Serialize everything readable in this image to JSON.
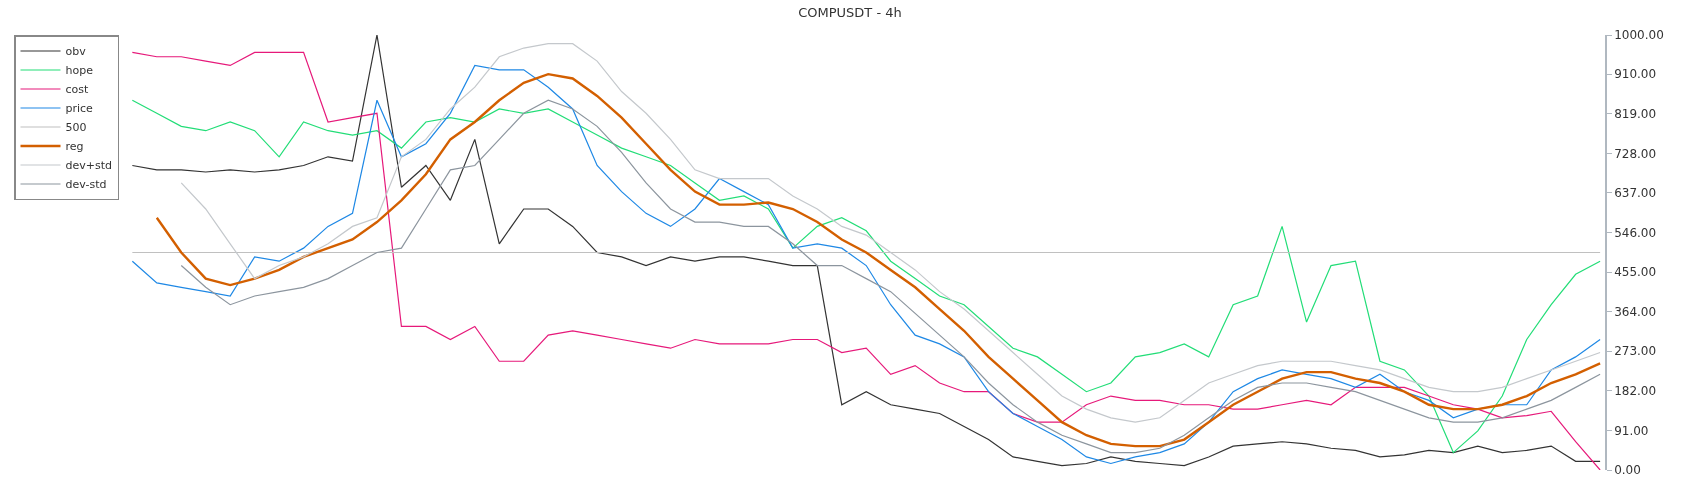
{
  "chart_data": {
    "type": "line",
    "title": "COMPUSDT - 4h",
    "categories": [
      null,
      null,
      null,
      null,
      null,
      null,
      null,
      null,
      null,
      null,
      null,
      null,
      null,
      null,
      null,
      null,
      null,
      null,
      null,
      null,
      null,
      null,
      null,
      null,
      null,
      null,
      null,
      null,
      null,
      null,
      null,
      null,
      null,
      null,
      null,
      null,
      null,
      null,
      null,
      null,
      null,
      null,
      null,
      null,
      null,
      null,
      null,
      null,
      null,
      null,
      null,
      null,
      null,
      null,
      null,
      null,
      null,
      null,
      null,
      null,
      null
    ],
    "series": [
      {
        "name": "obv",
        "color": "#333333",
        "values": [
          700,
          690,
          690,
          685,
          690,
          685,
          690,
          700,
          720,
          710,
          1000,
          650,
          700,
          620,
          760,
          520,
          600,
          600,
          560,
          500,
          490,
          470,
          490,
          480,
          490,
          490,
          480,
          470,
          470,
          150,
          180,
          150,
          140,
          130,
          100,
          70,
          30,
          20,
          10,
          15,
          30,
          20,
          15,
          10,
          30,
          55,
          60,
          65,
          60,
          50,
          45,
          30,
          35,
          45,
          40,
          55,
          40,
          45,
          55,
          20,
          20
        ]
      },
      {
        "name": "hope",
        "color": "#22dd77",
        "values": [
          850,
          820,
          790,
          780,
          800,
          780,
          720,
          800,
          780,
          770,
          780,
          740,
          800,
          810,
          800,
          830,
          820,
          830,
          800,
          770,
          740,
          720,
          700,
          660,
          620,
          630,
          600,
          510,
          560,
          580,
          550,
          480,
          440,
          400,
          380,
          330,
          280,
          260,
          220,
          180,
          200,
          260,
          270,
          290,
          260,
          380,
          400,
          560,
          340,
          470,
          480,
          250,
          230,
          170,
          40,
          90,
          170,
          300,
          380,
          450,
          480
        ]
      },
      {
        "name": "cost",
        "color": "#e6197a",
        "values": [
          960,
          950,
          950,
          940,
          930,
          960,
          960,
          960,
          800,
          810,
          820,
          330,
          330,
          300,
          330,
          250,
          250,
          310,
          320,
          310,
          300,
          290,
          280,
          300,
          290,
          290,
          290,
          300,
          300,
          270,
          280,
          220,
          240,
          200,
          180,
          180,
          130,
          110,
          110,
          150,
          170,
          160,
          160,
          150,
          150,
          140,
          140,
          150,
          160,
          150,
          190,
          190,
          190,
          170,
          150,
          140,
          120,
          125,
          135,
          65,
          0
        ]
      },
      {
        "name": "price",
        "color": "#1e88e5",
        "values": [
          480,
          430,
          420,
          410,
          400,
          490,
          480,
          510,
          560,
          590,
          850,
          720,
          750,
          820,
          930,
          920,
          920,
          880,
          830,
          700,
          640,
          590,
          560,
          600,
          670,
          640,
          610,
          510,
          520,
          510,
          470,
          380,
          310,
          290,
          260,
          180,
          130,
          100,
          70,
          30,
          15,
          30,
          40,
          60,
          110,
          180,
          210,
          230,
          220,
          210,
          190,
          220,
          180,
          160,
          120,
          140,
          150,
          150,
          230,
          260,
          300
        ]
      },
      {
        "name": "500",
        "color": "#c0c0c0",
        "values": [
          500,
          500,
          500,
          500,
          500,
          500,
          500,
          500,
          500,
          500,
          500,
          500,
          500,
          500,
          500,
          500,
          500,
          500,
          500,
          500,
          500,
          500,
          500,
          500,
          500,
          500,
          500,
          500,
          500,
          500,
          500,
          500,
          500,
          500,
          500,
          500,
          500,
          500,
          500,
          500,
          500,
          500,
          500,
          500,
          500,
          500,
          500,
          500,
          500,
          500,
          500,
          500,
          500,
          500,
          500,
          500,
          500,
          500,
          500,
          500,
          500
        ]
      },
      {
        "name": "reg",
        "color": "#d35f00",
        "values": [
          null,
          580,
          500,
          440,
          425,
          440,
          460,
          490,
          510,
          530,
          570,
          620,
          680,
          760,
          800,
          850,
          890,
          910,
          900,
          860,
          810,
          750,
          690,
          640,
          610,
          610,
          615,
          600,
          570,
          530,
          500,
          460,
          420,
          370,
          320,
          260,
          210,
          160,
          110,
          80,
          60,
          55,
          55,
          70,
          110,
          150,
          180,
          210,
          225,
          225,
          210,
          200,
          180,
          150,
          140,
          140,
          150,
          170,
          200,
          220,
          245
        ]
      },
      {
        "name": "dev+std",
        "color": "#c4c8cc",
        "values": [
          null,
          null,
          660,
          600,
          520,
          440,
          470,
          490,
          520,
          560,
          580,
          720,
          760,
          830,
          880,
          950,
          970,
          980,
          980,
          940,
          870,
          820,
          760,
          690,
          670,
          670,
          670,
          630,
          600,
          560,
          540,
          500,
          460,
          410,
          370,
          320,
          270,
          220,
          170,
          140,
          120,
          110,
          120,
          160,
          200,
          220,
          240,
          250,
          250,
          250,
          240,
          230,
          210,
          190,
          180,
          180,
          190,
          210,
          230,
          250,
          270
        ]
      },
      {
        "name": "dev-std",
        "color": "#8c959e",
        "values": [
          null,
          null,
          470,
          420,
          380,
          400,
          410,
          420,
          440,
          470,
          500,
          510,
          600,
          690,
          700,
          760,
          820,
          850,
          830,
          790,
          730,
          660,
          600,
          570,
          570,
          560,
          560,
          520,
          470,
          470,
          440,
          410,
          360,
          310,
          260,
          200,
          150,
          110,
          80,
          60,
          40,
          40,
          50,
          80,
          120,
          160,
          190,
          200,
          200,
          190,
          180,
          160,
          140,
          120,
          110,
          110,
          120,
          140,
          160,
          190,
          220
        ]
      }
    ],
    "ylim": [
      0,
      1000
    ],
    "yticks": [
      {
        "value": 0,
        "label": "0.00"
      },
      {
        "value": 91,
        "label": "91.00"
      },
      {
        "value": 182,
        "label": "182.00"
      },
      {
        "value": 273,
        "label": "273.00"
      },
      {
        "value": 364,
        "label": "364.00"
      },
      {
        "value": 455,
        "label": "455.00"
      },
      {
        "value": 546,
        "label": "546.00"
      },
      {
        "value": 637,
        "label": "637.00"
      },
      {
        "value": 728,
        "label": "728.00"
      },
      {
        "value": 819,
        "label": "819.00"
      },
      {
        "value": 910,
        "label": "910.00"
      },
      {
        "value": 1000,
        "label": "1000.00"
      }
    ],
    "tick_labels": "y",
    "legend": "top left",
    "marker": "none",
    "line_style": "solid"
  }
}
